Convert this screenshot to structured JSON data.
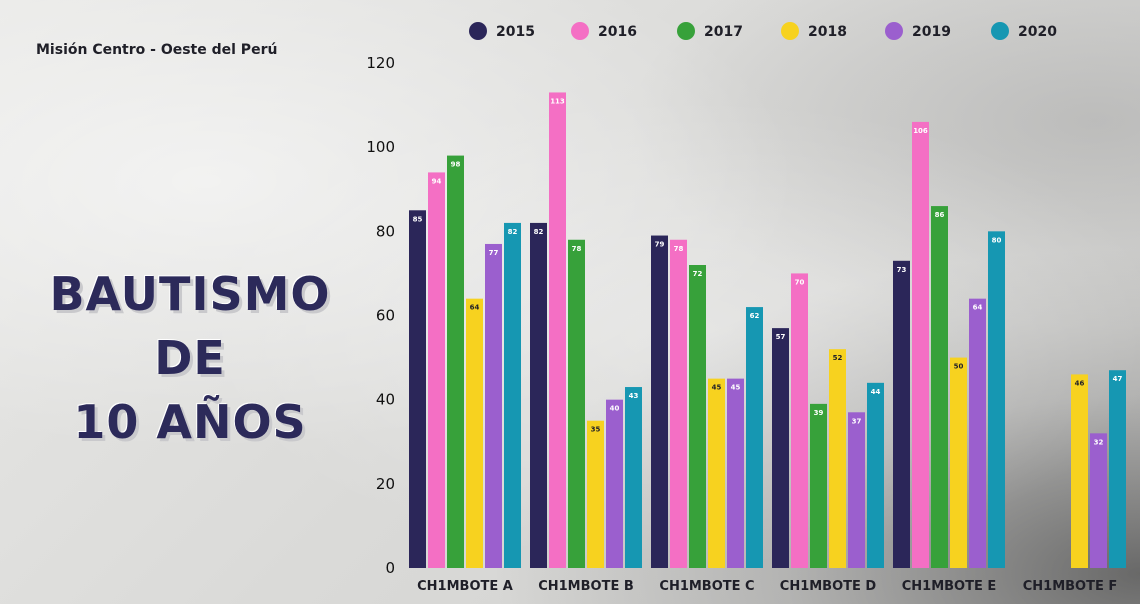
{
  "subtitle": "Misión Centro - Oeste del Perú",
  "headline": [
    "BAUTISMO",
    "DE",
    "10 AÑOS"
  ],
  "chart_data": {
    "type": "bar",
    "categories": [
      "CH1MBOTE A",
      "CH1MBOTE B",
      "CH1MBOTE C",
      "CH1MBOTE D",
      "CH1MBOTE E",
      "CH1MBOTE F"
    ],
    "series": [
      {
        "name": "2015",
        "color": "#2b2659",
        "values": [
          85,
          82,
          79,
          57,
          73,
          null
        ]
      },
      {
        "name": "2016",
        "color": "#f46fc4",
        "values": [
          94,
          113,
          78,
          70,
          106,
          null
        ]
      },
      {
        "name": "2017",
        "color": "#37a13a",
        "values": [
          98,
          78,
          72,
          39,
          86,
          null
        ]
      },
      {
        "name": "2018",
        "color": "#f7d21f",
        "values": [
          64,
          35,
          45,
          52,
          50,
          46
        ]
      },
      {
        "name": "2019",
        "color": "#9b5fce",
        "values": [
          77,
          40,
          45,
          37,
          64,
          32
        ]
      },
      {
        "name": "2020",
        "color": "#1697b2",
        "values": [
          82,
          43,
          62,
          44,
          80,
          47
        ]
      }
    ],
    "ylim": [
      0,
      120
    ],
    "yticks": [
      0,
      20,
      40,
      60,
      80,
      100,
      120
    ],
    "legend_position": "top",
    "grid": false,
    "data_labels": true
  }
}
